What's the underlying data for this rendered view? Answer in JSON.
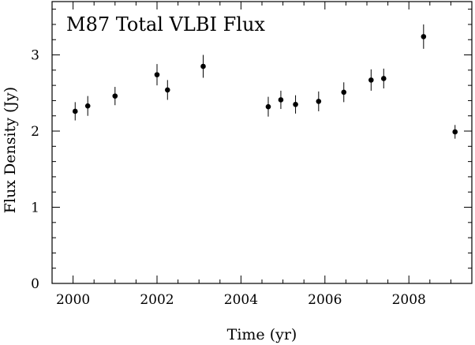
{
  "chart_data": {
    "type": "scatter",
    "title": "M87 Total VLBI Flux",
    "xlabel": "Time (yr)",
    "ylabel": "Flux Density (Jy)",
    "xlim": [
      1999.5,
      2009.5
    ],
    "ylim": [
      0,
      3.7
    ],
    "x_ticks_major": [
      2000,
      2002,
      2004,
      2006,
      2008
    ],
    "x_tick_labels": [
      "2000",
      "2002",
      "2004",
      "2006",
      "2008"
    ],
    "x_ticks_minor_step": 0.5,
    "y_ticks_major": [
      0,
      1,
      2,
      3
    ],
    "y_tick_labels": [
      "0",
      "1",
      "2",
      "3"
    ],
    "y_ticks_minor_step": 0.2,
    "grid": false,
    "series": [
      {
        "marker": "filled-circle",
        "color": "#000000",
        "x": [
          2000.05,
          2000.35,
          2001.0,
          2002.0,
          2002.25,
          2003.1,
          2004.65,
          2004.95,
          2005.3,
          2005.85,
          2006.45,
          2007.1,
          2007.4,
          2008.35,
          2009.1
        ],
        "y": [
          2.26,
          2.33,
          2.46,
          2.74,
          2.54,
          2.85,
          2.32,
          2.41,
          2.35,
          2.39,
          2.51,
          2.67,
          2.69,
          3.24,
          1.99
        ],
        "yerr": [
          0.12,
          0.13,
          0.12,
          0.14,
          0.13,
          0.15,
          0.13,
          0.12,
          0.12,
          0.13,
          0.13,
          0.14,
          0.13,
          0.16,
          0.09
        ]
      }
    ]
  }
}
